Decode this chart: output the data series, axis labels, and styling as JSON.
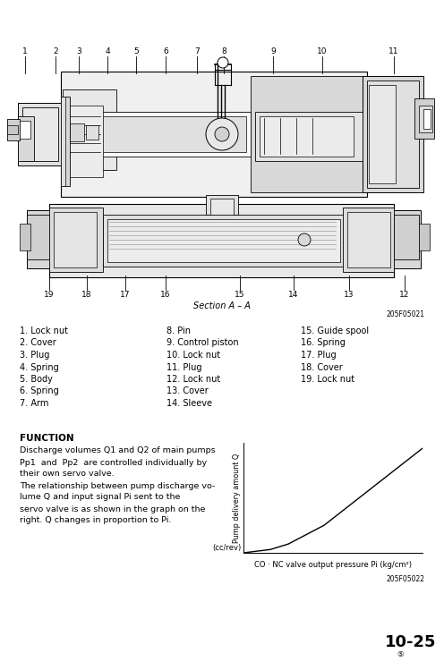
{
  "background_color": "#ffffff",
  "section_label": "Section A – A",
  "figure_code_top": "205F05021",
  "figure_code_bottom": "205F05022",
  "parts_col1": [
    "1. Lock nut",
    "2. Cover",
    "3. Plug",
    "4. Spring",
    "5. Body",
    "6. Spring",
    "7. Arm"
  ],
  "parts_col2": [
    "8. Pin",
    "9. Control piston",
    "10. Lock nut",
    "11. Plug",
    "12. Lock nut",
    "13. Cover",
    "14. Sleeve"
  ],
  "parts_col3": [
    "15. Guide spool",
    "16. Spring",
    "17. Plug",
    "18. Cover",
    "19. Lock nut"
  ],
  "function_title": "FUNCTION",
  "function_lines": [
    "Discharge volumes Q1 and Q2 of main pumps",
    "Pp1  and  Pp2  are controlled individually by",
    "their own servo valve.",
    "The relationship between pump discharge vo-",
    "lume Q and input signal Pi sent to the",
    "servo valve is as shown in the graph on the",
    "right. Q changes in proportion to Pi."
  ],
  "graph_ylabel": "Pump delivery amount Q",
  "graph_ylabel2": "(cc/rev)",
  "graph_xlabel": "CO · NC valve output pressure Pi (kg/cm²)",
  "top_numbers": [
    "1",
    "2",
    "3",
    "4",
    "5",
    "6",
    "7",
    "8",
    "9",
    "10",
    "11"
  ],
  "bottom_numbers": [
    "19",
    "18",
    "17",
    "16",
    "15",
    "14",
    "13",
    "12"
  ],
  "page_number": "10-25"
}
